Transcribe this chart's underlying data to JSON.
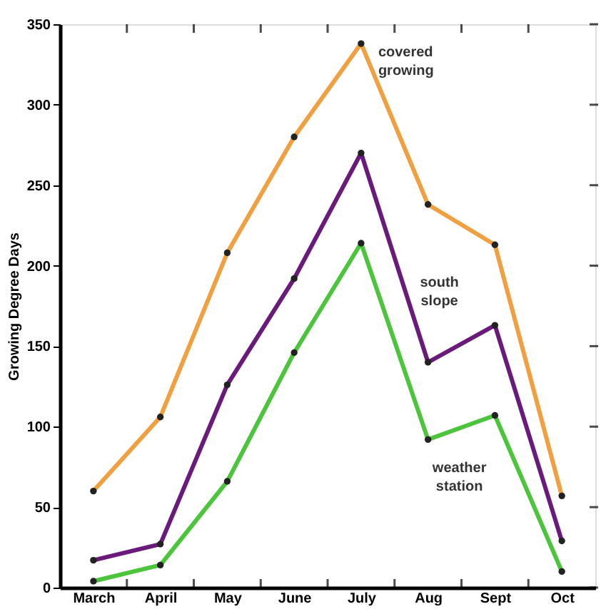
{
  "chart_data": {
    "type": "line",
    "ylabel": "Growing Degree Days",
    "categories": [
      "March",
      "April",
      "May",
      "June",
      "July",
      "Aug",
      "Sept",
      "Oct"
    ],
    "series": [
      {
        "name": "covered growing",
        "color": "#f0a040",
        "values": [
          60,
          106,
          208,
          280,
          338,
          238,
          213,
          57
        ]
      },
      {
        "name": "south slope",
        "color": "#6a1a7a",
        "values": [
          17,
          27,
          126,
          192,
          270,
          140,
          163,
          29
        ]
      },
      {
        "name": "weather station",
        "color": "#4cc43c",
        "values": [
          4,
          14,
          66,
          146,
          214,
          92,
          107,
          10
        ]
      }
    ],
    "ylim": [
      0,
      350
    ],
    "yticks": [
      0,
      50,
      100,
      150,
      200,
      250,
      300,
      350
    ],
    "grid": false,
    "legend": false,
    "marker": "circle",
    "line_style": "solid"
  }
}
